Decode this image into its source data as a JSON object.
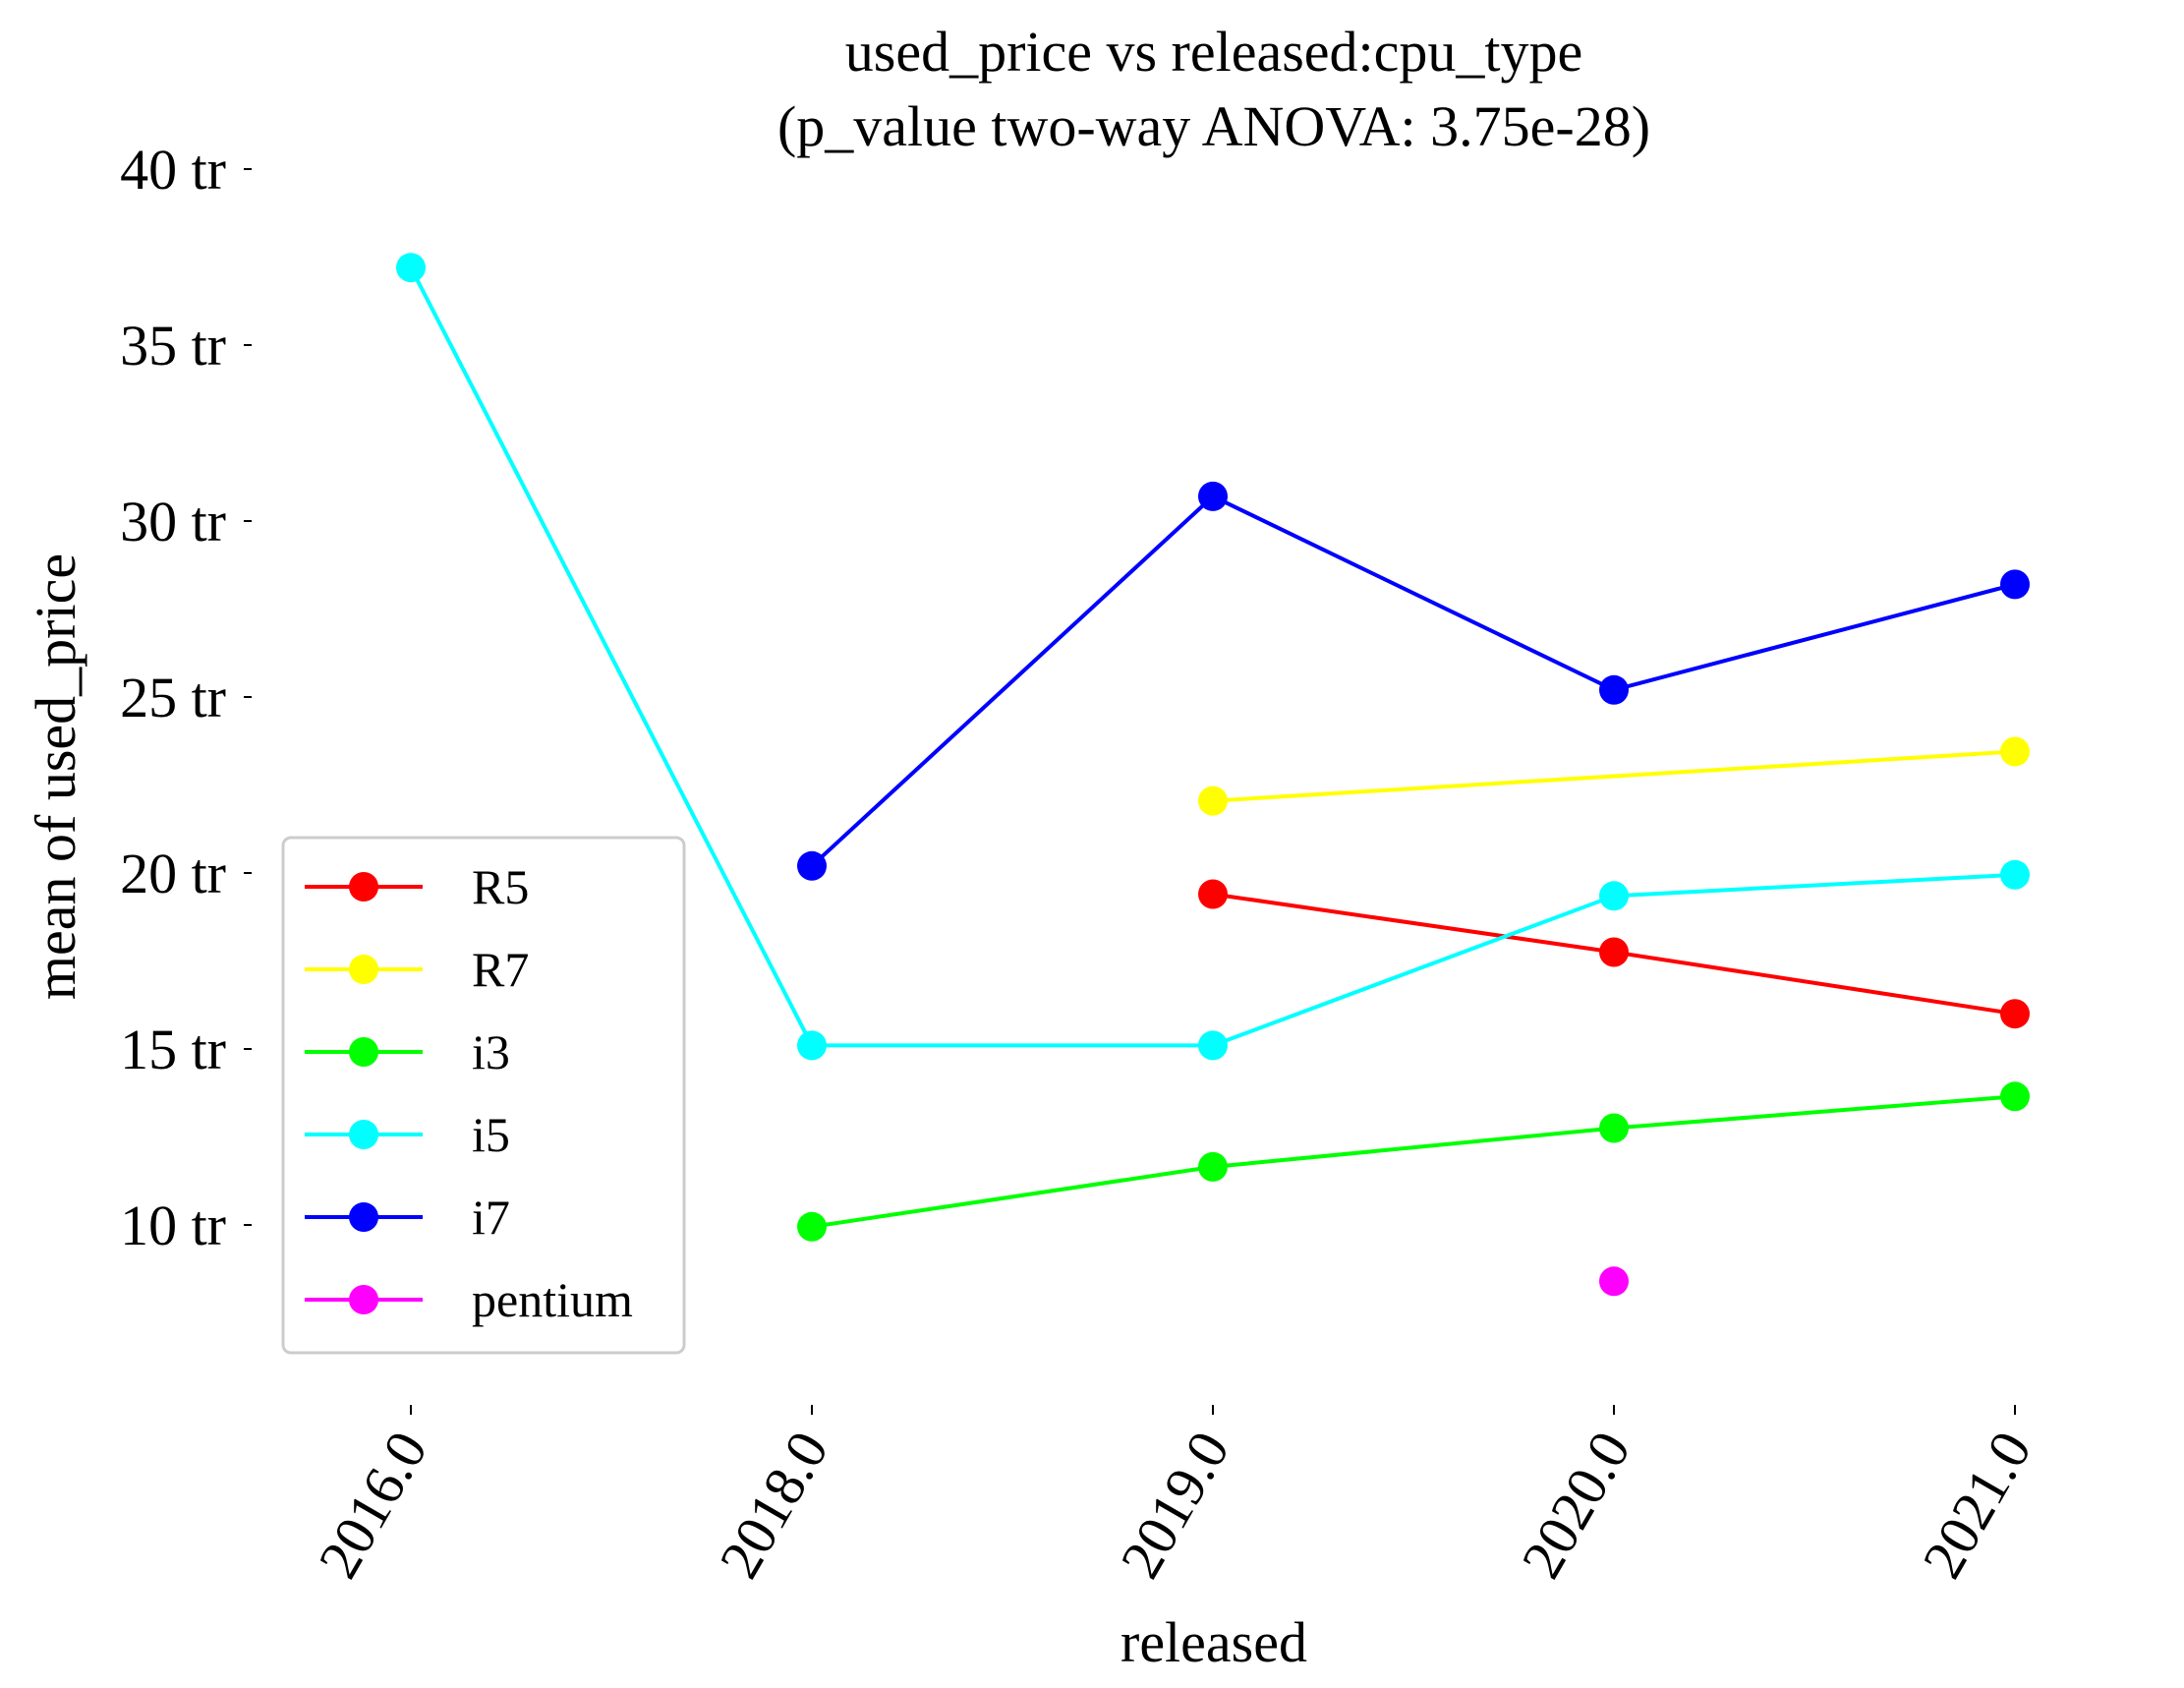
{
  "chart_data": {
    "type": "line",
    "title": "used_price vs released:cpu_type",
    "subtitle": "(p_value two-way ANOVA: 3.75e-28)",
    "xlabel": "released",
    "ylabel": "mean of used_price",
    "categories": [
      "2016.0",
      "2018.0",
      "2019.0",
      "2020.0",
      "2021.0"
    ],
    "y_ticks": [
      {
        "value": 10,
        "label": "10 tr"
      },
      {
        "value": 15,
        "label": "15 tr"
      },
      {
        "value": 20,
        "label": "20 tr"
      },
      {
        "value": 25,
        "label": "25 tr"
      },
      {
        "value": 30,
        "label": "30 tr"
      },
      {
        "value": 35,
        "label": "35 tr"
      },
      {
        "value": 40,
        "label": "40 tr"
      }
    ],
    "ylim": [
      5.5,
      40.0
    ],
    "grid": false,
    "legend_position": "lower-left",
    "series": [
      {
        "name": "R5",
        "color": "#ff0000",
        "values": [
          null,
          null,
          19.4,
          17.75,
          16.0
        ]
      },
      {
        "name": "R7",
        "color": "#ffff00",
        "values": [
          null,
          null,
          22.05,
          null,
          23.45
        ]
      },
      {
        "name": "i3",
        "color": "#00ff00",
        "values": [
          null,
          9.95,
          11.65,
          12.75,
          13.65
        ]
      },
      {
        "name": "i5",
        "color": "#00ffff",
        "values": [
          37.2,
          15.1,
          15.1,
          19.35,
          19.95
        ]
      },
      {
        "name": "i7",
        "color": "#0000ff",
        "values": [
          null,
          20.2,
          30.7,
          25.2,
          28.2
        ]
      },
      {
        "name": "pentium",
        "color": "#ff00ff",
        "values": [
          null,
          null,
          null,
          8.4,
          null
        ]
      }
    ]
  }
}
